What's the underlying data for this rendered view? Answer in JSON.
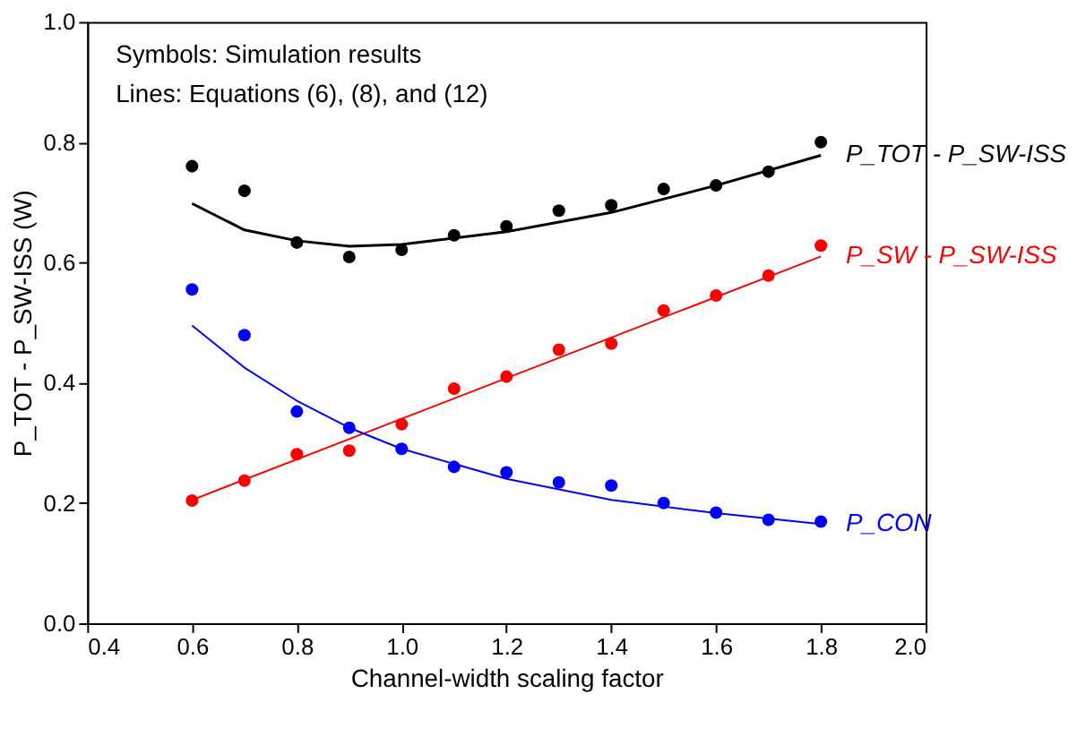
{
  "chart_data": {
    "type": "scatter",
    "xlabel": "Channel-width scaling factor",
    "ylabel": "P_TOT - P_SW-ISS (W)",
    "annotations": [
      "Symbols: Simulation results",
      "Lines: Equations (6), (8), and (12)"
    ],
    "x": [
      0.6,
      0.7,
      0.8,
      0.9,
      1.0,
      1.1,
      1.2,
      1.3,
      1.4,
      1.5,
      1.6,
      1.7,
      1.8
    ],
    "series": [
      {
        "color": "#000000",
        "values": [
          0.76,
          0.719,
          0.633,
          0.609,
          0.621,
          0.645,
          0.66,
          0.686,
          0.695,
          0.722,
          0.728,
          0.751,
          0.8
        ]
      },
      {
        "color": "#ff0000",
        "values": [
          0.204,
          0.237,
          0.281,
          0.287,
          0.331,
          0.39,
          0.41,
          0.455,
          0.465,
          0.52,
          0.545,
          0.578,
          0.628
        ]
      },
      {
        "color": "#0000ff",
        "values": [
          0.555,
          0.479,
          0.352,
          0.325,
          0.29,
          0.26,
          0.251,
          0.234,
          0.229,
          0.2,
          0.184,
          0.172,
          0.169
        ]
      },
      {
        "type": "line",
        "marker": "none",
        "name": "P_TOT - P_SW-ISS",
        "color": "#000000",
        "x": [
          0.6,
          0.7,
          0.8,
          0.9,
          1.0,
          1.2,
          1.4,
          1.6,
          1.8
        ],
        "values": [
          0.698,
          0.654,
          0.636,
          0.627,
          0.63,
          0.651,
          0.683,
          0.728,
          0.778
        ]
      },
      {
        "type": "line",
        "marker": "none",
        "name": "P_SW - P_SW-ISS",
        "color": "#ff0000",
        "x": [
          0.6,
          1.8
        ],
        "values": [
          0.205,
          0.61
        ]
      },
      {
        "type": "line",
        "marker": "none",
        "name": "P_CON",
        "color": "#0000ff",
        "x": [
          0.6,
          0.7,
          0.8,
          0.9,
          1.0,
          1.2,
          1.4,
          1.6,
          1.8
        ],
        "values": [
          0.495,
          0.425,
          0.37,
          0.325,
          0.29,
          0.24,
          0.205,
          0.183,
          0.165
        ]
      }
    ],
    "xlim": [
      0.4,
      2.0
    ],
    "xticks": [
      {
        "value": 0.4,
        "label": "0.4"
      },
      {
        "value": 0.6,
        "label": "0.6"
      },
      {
        "value": 0.8,
        "label": "0.8"
      },
      {
        "value": 1.0,
        "label": "1.0"
      },
      {
        "value": 1.2,
        "label": "1.2"
      },
      {
        "value": 1.4,
        "label": "1.4"
      },
      {
        "value": 1.6,
        "label": "1.6"
      },
      {
        "value": 1.8,
        "label": "1.8"
      },
      {
        "value": 2.0,
        "label": "2.0"
      }
    ],
    "ylim": [
      0.0,
      1.0
    ],
    "yticks": [
      {
        "value": 0.0,
        "label": "0.0"
      },
      {
        "value": 0.2,
        "label": "0.2"
      },
      {
        "value": 0.4,
        "label": "0.4"
      },
      {
        "value": 0.6,
        "label": "0.6"
      },
      {
        "value": 0.8,
        "label": "0.8"
      },
      {
        "value": 1.0,
        "label": "1.0"
      }
    ],
    "grid": false,
    "legend": false,
    "marker": "circle"
  }
}
